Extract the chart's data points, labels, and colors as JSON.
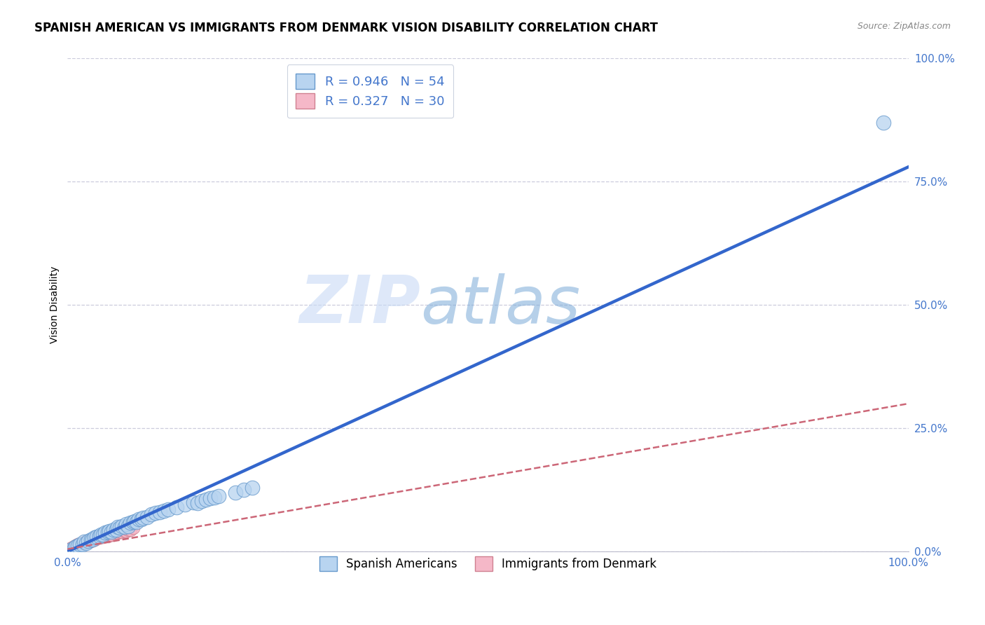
{
  "title": "SPANISH AMERICAN VS IMMIGRANTS FROM DENMARK VISION DISABILITY CORRELATION CHART",
  "source": "Source: ZipAtlas.com",
  "ylabel": "Vision Disability",
  "xlim": [
    0.0,
    1.0
  ],
  "ylim": [
    0.0,
    1.0
  ],
  "xtick_positions": [
    0.0,
    1.0
  ],
  "xtick_labels": [
    "0.0%",
    "100.0%"
  ],
  "ytick_positions": [
    0.0,
    0.25,
    0.5,
    0.75,
    1.0
  ],
  "ytick_labels": [
    "0.0%",
    "25.0%",
    "50.0%",
    "75.0%",
    "100.0%"
  ],
  "watermark_zip": "ZIP",
  "watermark_atlas": "atlas",
  "legend1_label": "R = 0.946   N = 54",
  "legend2_label": "R = 0.327   N = 30",
  "blue_scatter_color": "#b8d4f0",
  "blue_edge_color": "#6699cc",
  "pink_scatter_color": "#f5b8c8",
  "pink_edge_color": "#d08090",
  "blue_line_color": "#3366cc",
  "pink_line_color": "#cc6677",
  "grid_color": "#ccccdd",
  "tick_color": "#4477cc",
  "background_color": "#ffffff",
  "title_fontsize": 12,
  "axis_label_fontsize": 10,
  "tick_fontsize": 11,
  "blue_scatter_x": [
    0.005,
    0.008,
    0.01,
    0.012,
    0.015,
    0.018,
    0.02,
    0.022,
    0.025,
    0.028,
    0.03,
    0.032,
    0.035,
    0.038,
    0.04,
    0.042,
    0.045,
    0.048,
    0.05,
    0.052,
    0.055,
    0.058,
    0.06,
    0.062,
    0.065,
    0.068,
    0.07,
    0.072,
    0.075,
    0.078,
    0.08,
    0.082,
    0.085,
    0.088,
    0.09,
    0.095,
    0.1,
    0.105,
    0.11,
    0.115,
    0.12,
    0.13,
    0.14,
    0.15,
    0.155,
    0.16,
    0.165,
    0.17,
    0.175,
    0.18,
    0.2,
    0.21,
    0.22,
    0.97
  ],
  "blue_scatter_y": [
    0.005,
    0.008,
    0.01,
    0.012,
    0.015,
    0.015,
    0.02,
    0.018,
    0.022,
    0.025,
    0.025,
    0.028,
    0.03,
    0.032,
    0.035,
    0.035,
    0.038,
    0.04,
    0.042,
    0.04,
    0.045,
    0.045,
    0.05,
    0.048,
    0.052,
    0.05,
    0.055,
    0.052,
    0.058,
    0.06,
    0.062,
    0.06,
    0.065,
    0.065,
    0.068,
    0.07,
    0.075,
    0.078,
    0.08,
    0.082,
    0.085,
    0.09,
    0.095,
    0.1,
    0.098,
    0.102,
    0.105,
    0.108,
    0.11,
    0.112,
    0.12,
    0.125,
    0.13,
    0.87
  ],
  "pink_scatter_x": [
    0.005,
    0.008,
    0.01,
    0.012,
    0.015,
    0.018,
    0.02,
    0.022,
    0.025,
    0.028,
    0.03,
    0.032,
    0.035,
    0.038,
    0.04,
    0.042,
    0.045,
    0.048,
    0.05,
    0.052,
    0.055,
    0.058,
    0.06,
    0.062,
    0.065,
    0.068,
    0.07,
    0.072,
    0.075,
    0.078
  ],
  "pink_scatter_y": [
    0.008,
    0.01,
    0.012,
    0.015,
    0.015,
    0.018,
    0.018,
    0.02,
    0.022,
    0.022,
    0.025,
    0.025,
    0.028,
    0.028,
    0.03,
    0.03,
    0.032,
    0.032,
    0.035,
    0.035,
    0.038,
    0.038,
    0.038,
    0.04,
    0.04,
    0.042,
    0.042,
    0.045,
    0.045,
    0.048
  ],
  "blue_regline_x": [
    0.0,
    1.0
  ],
  "blue_regline_y": [
    0.0,
    0.78
  ],
  "pink_regline_x": [
    0.0,
    1.0
  ],
  "pink_regline_y": [
    0.005,
    0.3
  ],
  "legend_label_sa": "Spanish Americans",
  "legend_label_dk": "Immigrants from Denmark"
}
